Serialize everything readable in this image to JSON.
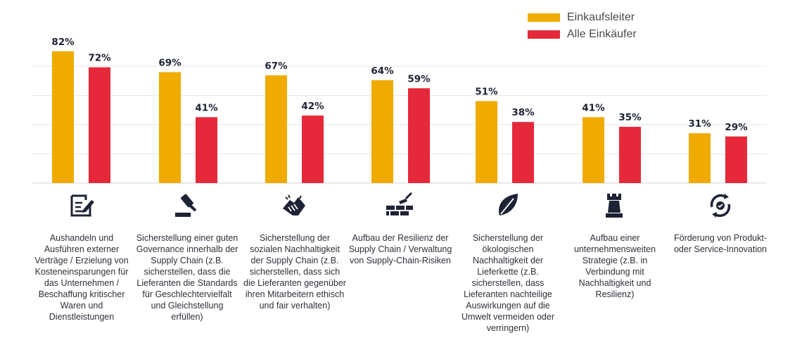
{
  "chart_data": {
    "type": "bar",
    "categories": [
      "Aushandeln und Ausführen externer Verträge / Erzielung von Kosteneinsparungen für das Unternehmen / Beschaffung kritischer Waren und Dienstleistungen",
      "Sicherstellung einer guten Governance innerhalb der Supply Chain (z.B. sicherstellen, dass die Lieferanten die Standards für Geschlechtervielfalt und Gleichstellung erfüllen)",
      "Sicherstellung der sozialen Nachhaltigkeit der Supply Chain (z.B. sicherstellen, dass sich die Lieferanten gegenüber ihren Mitarbeitern ethisch und fair verhalten)",
      "Aufbau der Resilienz der Supply Chain / Verwaltung von Supply-Chain-Risiken",
      "Sicherstellung der ökologischen Nachhaltigkeit der Lieferkette (z.B. sicherstellen, dass Lieferanten nachteilige Auswirkungen auf die Umwelt vermeiden oder verringern)",
      "Aufbau einer unternehmensweiten Strategie (z.B. in Verbindung mit Nachhaltigkeit und Resilienz)",
      "Förderung von Produkt- oder Service-Innovation"
    ],
    "series": [
      {
        "name": "Einkaufsleiter",
        "values": [
          82,
          69,
          67,
          64,
          51,
          41,
          31
        ],
        "color": "#F0AB00"
      },
      {
        "name": "Alle Einkäufer",
        "values": [
          72,
          41,
          42,
          59,
          38,
          35,
          29
        ],
        "color": "#E5293A"
      }
    ],
    "value_suffix": "%",
    "ylim": [
      0,
      100
    ],
    "grid": true,
    "legend": "top-right",
    "icons": [
      "document-pen-icon",
      "gavel-icon",
      "handshake-icon",
      "brick-wall-trowel-icon",
      "leaf-icon",
      "chess-rook-icon",
      "cycle-gear-icon"
    ]
  }
}
